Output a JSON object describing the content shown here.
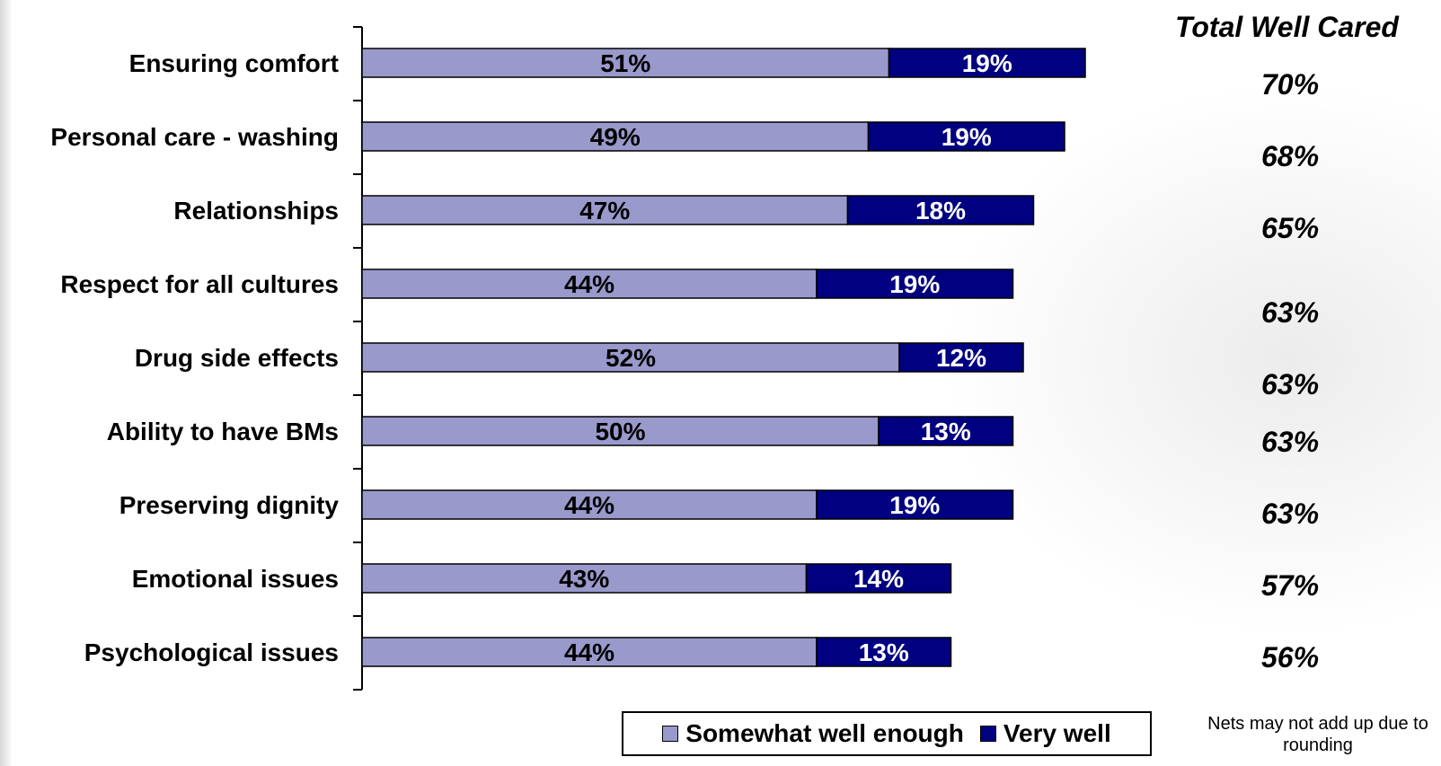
{
  "chart_data": {
    "type": "bar",
    "orientation": "horizontal",
    "stacked": true,
    "categories": [
      "Ensuring comfort",
      "Personal care - washing",
      "Relationships",
      "Respect for all cultures",
      "Drug side effects",
      "Ability to have BMs",
      "Preserving dignity",
      "Emotional issues",
      "Psychological issues"
    ],
    "series": [
      {
        "name": "Somewhat well enough",
        "color": "#9999cc",
        "values": [
          51,
          49,
          47,
          44,
          52,
          50,
          44,
          43,
          44
        ],
        "labels": [
          "51%",
          "49%",
          "47%",
          "44%",
          "52%",
          "50%",
          "44%",
          "43%",
          "44%"
        ]
      },
      {
        "name": "Very well",
        "color": "#000080",
        "values": [
          19,
          19,
          18,
          19,
          12,
          13,
          19,
          14,
          13
        ],
        "labels": [
          "19%",
          "19%",
          "18%",
          "19%",
          "12%",
          "13%",
          "19%",
          "14%",
          "13%"
        ]
      }
    ],
    "xlim": [
      0,
      100
    ],
    "grid": false,
    "legend": "bottom",
    "totals_title": "Total Well Cared",
    "totals": [
      "70%",
      "68%",
      "65%",
      "63%",
      "63%",
      "63%",
      "63%",
      "57%",
      "56%"
    ],
    "note": "Nets may not add up due to rounding"
  }
}
